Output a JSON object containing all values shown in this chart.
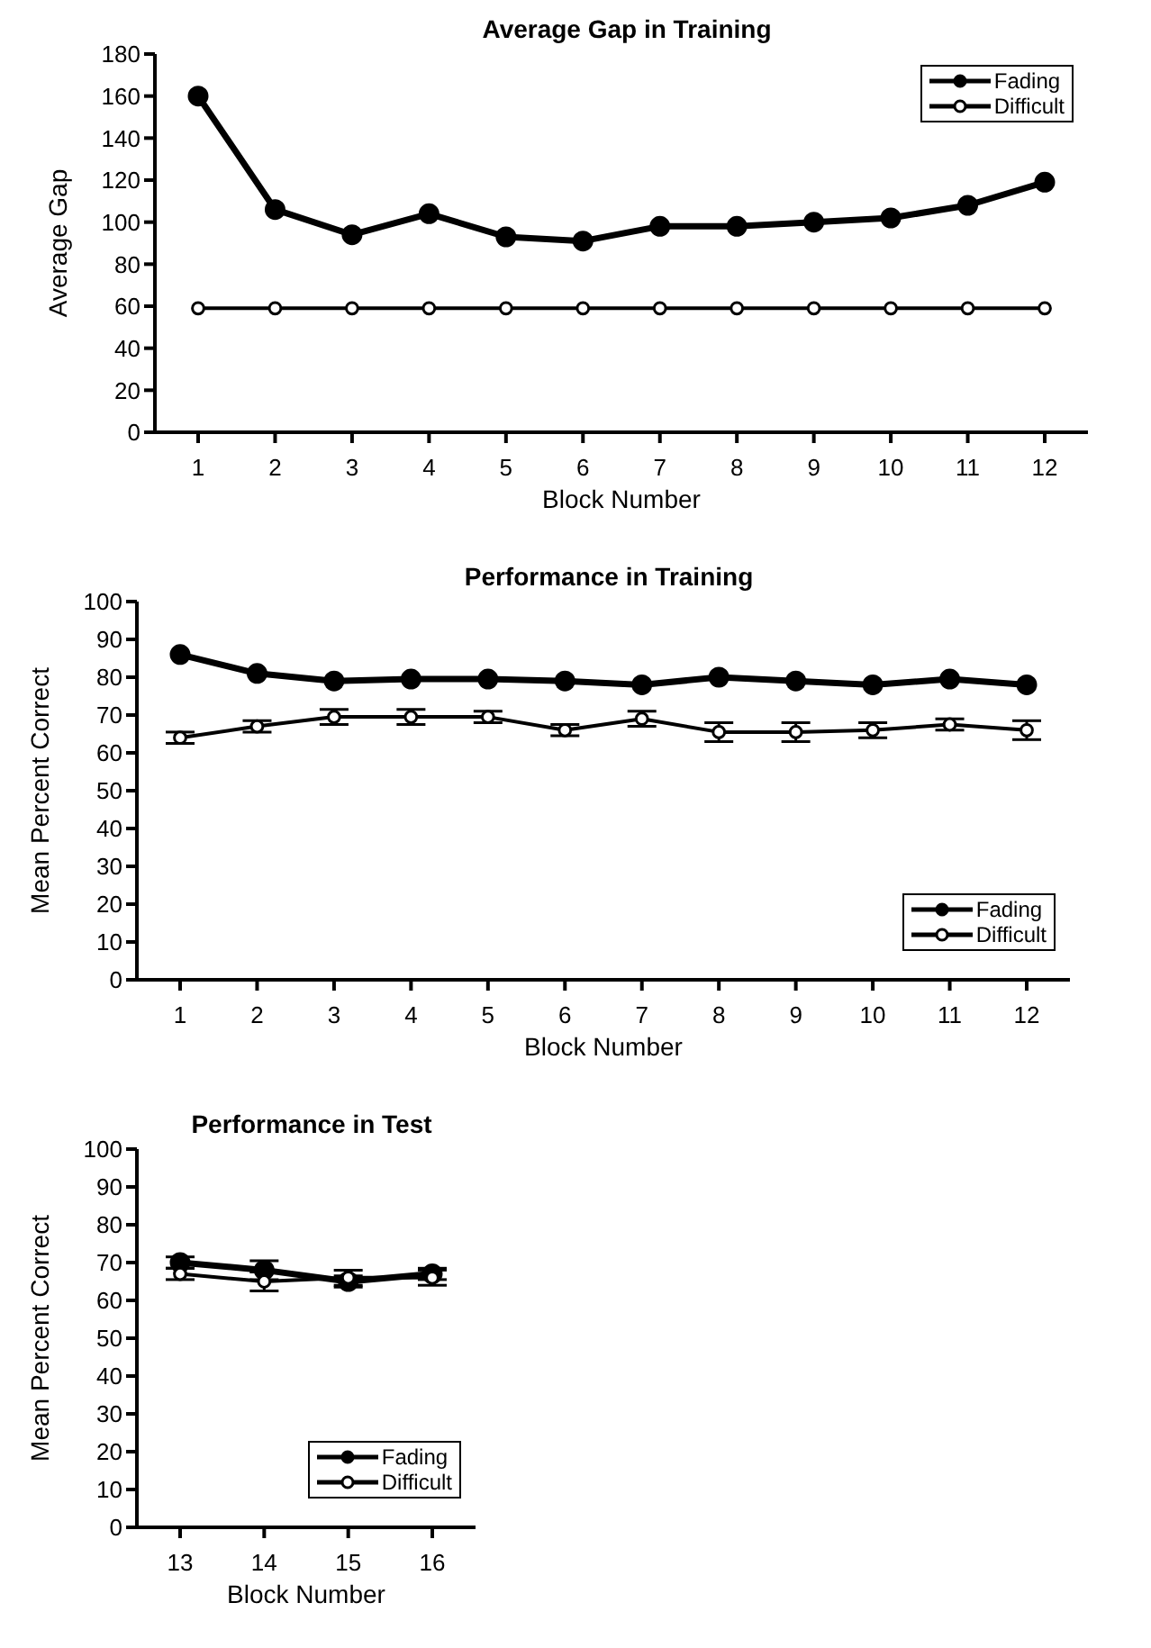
{
  "chart_data": [
    {
      "type": "line",
      "title": "Average Gap in Training",
      "xlabel": "Block Number",
      "ylabel": "Average Gap",
      "categories": [
        "1",
        "2",
        "3",
        "4",
        "5",
        "6",
        "7",
        "8",
        "9",
        "10",
        "11",
        "12"
      ],
      "series": [
        {
          "name": "Fading",
          "color": "#000000",
          "values": [
            160,
            106,
            94,
            104,
            93,
            91,
            98,
            98,
            100,
            102,
            108,
            119
          ]
        },
        {
          "name": "Difficult",
          "color": "#000000",
          "values": [
            59,
            59,
            59,
            59,
            59,
            59,
            59,
            59,
            59,
            59,
            59,
            59
          ]
        }
      ],
      "ylim": [
        0,
        180
      ],
      "yticks": [
        0,
        20,
        40,
        60,
        80,
        100,
        120,
        140,
        160,
        180
      ],
      "grid": false,
      "legend": "top right",
      "marker": "circle"
    },
    {
      "type": "line",
      "title": "Performance in Training",
      "xlabel": "Block Number",
      "ylabel": "Mean Percent Correct",
      "categories": [
        "1",
        "2",
        "3",
        "4",
        "5",
        "6",
        "7",
        "8",
        "9",
        "10",
        "11",
        "12"
      ],
      "series": [
        {
          "name": "Fading",
          "color": "#000000",
          "values": [
            86,
            81,
            79,
            79.5,
            79.5,
            79,
            78,
            80,
            79,
            78,
            79.5,
            78
          ]
        },
        {
          "name": "Difficult",
          "color": "#000000",
          "values": [
            64,
            67,
            69.5,
            69.5,
            69.5,
            66,
            69,
            65.5,
            65.5,
            66,
            67.5,
            66
          ],
          "errors": [
            1.5,
            1.5,
            2,
            2,
            1.5,
            1.5,
            2,
            2.5,
            2.5,
            2,
            1.5,
            2.5
          ]
        }
      ],
      "ylim": [
        0,
        100
      ],
      "yticks": [
        0,
        10,
        20,
        30,
        40,
        50,
        60,
        70,
        80,
        90,
        100
      ],
      "grid": false,
      "legend": "bottom right",
      "marker": "circle"
    },
    {
      "type": "line",
      "title": "Performance in Test",
      "xlabel": "Block Number",
      "ylabel": "Mean Percent Correct",
      "categories": [
        "13",
        "14",
        "15",
        "16"
      ],
      "series": [
        {
          "name": "Fading",
          "color": "#000000",
          "values": [
            70,
            68,
            65,
            67
          ],
          "errors": [
            1.5,
            2.5,
            1.5,
            1.5
          ]
        },
        {
          "name": "Difficult",
          "color": "#000000",
          "values": [
            67,
            65,
            66,
            66
          ],
          "errors": [
            1.5,
            2.5,
            2,
            2
          ]
        }
      ],
      "ylim": [
        0,
        100
      ],
      "yticks": [
        0,
        10,
        20,
        30,
        40,
        50,
        60,
        70,
        80,
        90,
        100
      ],
      "grid": false,
      "legend": "bottom right",
      "marker": "circle"
    }
  ]
}
